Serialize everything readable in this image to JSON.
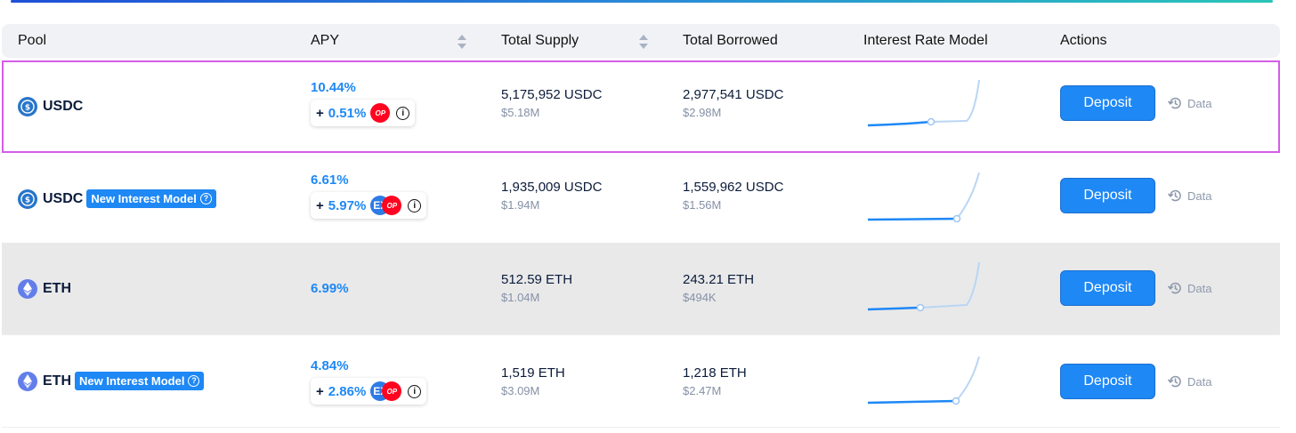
{
  "header": {
    "pool": "Pool",
    "apy": "APY",
    "total_supply": "Total Supply",
    "total_borrowed": "Total Borrowed",
    "interest_rate_model": "Interest Rate Model",
    "actions": "Actions"
  },
  "colors": {
    "accent": "#1e88f5",
    "highlight_outline": "#d45de8",
    "grey_row": "#e9e9ea",
    "op_red": "#ff0420"
  },
  "rows": [
    {
      "pool": "USDC",
      "asset_icon": "usdc-icon",
      "badge": "",
      "highlighted": true,
      "grey": false,
      "apy": "10.44%",
      "reward_plus": "+",
      "reward_pct": "0.51%",
      "reward_tokens": [
        "OP"
      ],
      "supply": "5,175,952 USDC",
      "supply_usd": "$5.18M",
      "borrowed": "2,977,541 USDC",
      "borrowed_usd": "$2.98M",
      "deposit": "Deposit",
      "data": "Data"
    },
    {
      "pool": "USDC",
      "asset_icon": "usdc-icon",
      "badge": "New Interest Model",
      "highlighted": false,
      "grey": false,
      "apy": "6.61%",
      "reward_plus": "+",
      "reward_pct": "5.97%",
      "reward_tokens": [
        "EX",
        "OP"
      ],
      "supply": "1,935,009 USDC",
      "supply_usd": "$1.94M",
      "borrowed": "1,559,962 USDC",
      "borrowed_usd": "$1.56M",
      "deposit": "Deposit",
      "data": "Data"
    },
    {
      "pool": "ETH",
      "asset_icon": "eth-icon",
      "badge": "",
      "highlighted": false,
      "grey": true,
      "apy": "6.99%",
      "reward_plus": "",
      "reward_pct": "",
      "reward_tokens": [],
      "supply": "512.59 ETH",
      "supply_usd": "$1.04M",
      "borrowed": "243.21 ETH",
      "borrowed_usd": "$494K",
      "deposit": "Deposit",
      "data": "Data"
    },
    {
      "pool": "ETH",
      "asset_icon": "eth-icon",
      "badge": "New Interest Model",
      "highlighted": false,
      "grey": false,
      "apy": "4.84%",
      "reward_plus": "+",
      "reward_pct": "2.86%",
      "reward_tokens": [
        "EX",
        "OP"
      ],
      "supply": "1,519 ETH",
      "supply_usd": "$3.09M",
      "borrowed": "1,218 ETH",
      "borrowed_usd": "$2.47M",
      "deposit": "Deposit",
      "data": "Data"
    }
  ]
}
